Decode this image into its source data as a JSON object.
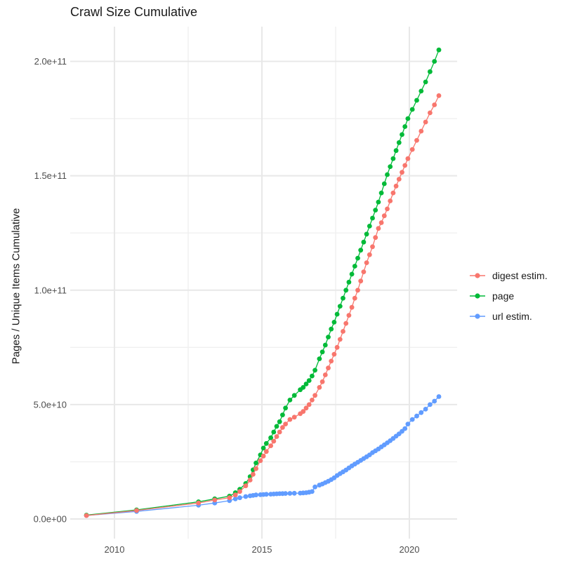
{
  "chart_data": {
    "type": "line",
    "title": "Crawl Size Cumulative",
    "xlabel": "",
    "ylabel": "Pages / Unique Items Cumulative",
    "x_unit": "year (decimal)",
    "values_unit": "1e9 (billions) of pages / unique items",
    "xlim": [
      2008.45,
      2021.6
    ],
    "ylim_e9": [
      0,
      215
    ],
    "grid": true,
    "legend_position": "right",
    "x_ticks": {
      "major": [
        2010,
        2015,
        2020
      ],
      "minor": [
        2012.5,
        2017.5
      ],
      "labels": [
        "2010",
        "2015",
        "2020"
      ]
    },
    "y_ticks": {
      "major_e9": [
        0,
        50,
        100,
        150,
        200
      ],
      "minor_e9": [
        25,
        75,
        125,
        175
      ],
      "labels": [
        "0.0e+00",
        "5.0e+10",
        "1.0e+11",
        "1.5e+11",
        "2.0e+11"
      ]
    },
    "legend": {
      "entries": [
        {
          "label": "digest estim.",
          "color": "#F8766D"
        },
        {
          "label": "page",
          "color": "#00BA38"
        },
        {
          "label": "url estim.",
          "color": "#619CFF"
        }
      ]
    },
    "x": [
      2009.05,
      2010.75,
      2012.85,
      2013.4,
      2013.9,
      2014.1,
      2014.25,
      2014.45,
      2014.6,
      2014.7,
      2014.8,
      2014.95,
      2015.05,
      2015.15,
      2015.3,
      2015.4,
      2015.5,
      2015.6,
      2015.7,
      2015.8,
      2015.95,
      2016.1,
      2016.3,
      2016.4,
      2016.5,
      2016.6,
      2016.7,
      2016.8,
      2016.95,
      2017.05,
      2017.15,
      2017.25,
      2017.35,
      2017.45,
      2017.55,
      2017.65,
      2017.75,
      2017.85,
      2017.95,
      2018.05,
      2018.15,
      2018.25,
      2018.35,
      2018.45,
      2018.55,
      2018.65,
      2018.75,
      2018.85,
      2018.95,
      2019.05,
      2019.15,
      2019.25,
      2019.35,
      2019.45,
      2019.55,
      2019.65,
      2019.75,
      2019.85,
      2019.95,
      2020.1,
      2020.25,
      2020.4,
      2020.55,
      2020.7,
      2020.85,
      2021.0
    ],
    "series": [
      {
        "name": "digest estim.",
        "color": "#F8766D",
        "values_e9": [
          1.5,
          3.7,
          7.0,
          8.3,
          9.3,
          10.5,
          12.0,
          14.5,
          17.0,
          19.5,
          22.0,
          25.5,
          27.5,
          29.5,
          32.0,
          34.0,
          36.0,
          38.0,
          40.0,
          41.5,
          43.5,
          44.5,
          46.0,
          47.0,
          48.5,
          50.0,
          52.0,
          54.0,
          57.5,
          60.0,
          63.0,
          66.0,
          69.0,
          72.0,
          75.0,
          78.5,
          82.0,
          85.5,
          89.0,
          92.5,
          96.5,
          100.0,
          104.0,
          108.0,
          112.0,
          115.5,
          119.0,
          123.0,
          127.0,
          129.5,
          132.5,
          135.5,
          139.0,
          142.5,
          145.5,
          148.5,
          151.5,
          154.5,
          157.5,
          161.5,
          165.5,
          169.5,
          173.5,
          177.5,
          181.0,
          185.0
        ]
      },
      {
        "name": "page",
        "color": "#00BA38",
        "values_e9": [
          1.7,
          4.0,
          7.5,
          8.8,
          10.0,
          11.5,
          13.0,
          15.5,
          18.5,
          21.5,
          24.5,
          28.0,
          31.0,
          33.0,
          35.5,
          38.0,
          40.5,
          42.5,
          45.5,
          48.5,
          52.0,
          54.0,
          56.5,
          57.5,
          59.0,
          60.5,
          62.5,
          65.0,
          70.0,
          73.0,
          76.0,
          79.5,
          83.0,
          86.0,
          89.5,
          93.0,
          96.5,
          100.0,
          103.5,
          107.0,
          110.5,
          114.0,
          117.5,
          121.0,
          124.5,
          128.0,
          131.5,
          135.0,
          138.5,
          142.5,
          146.5,
          150.5,
          154.0,
          157.5,
          161.0,
          164.5,
          168.0,
          171.5,
          175.0,
          179.0,
          183.0,
          187.0,
          191.0,
          195.5,
          200.0,
          205.0
        ]
      },
      {
        "name": "url estim.",
        "color": "#619CFF",
        "values_e9": [
          1.5,
          3.3,
          6.0,
          7.0,
          8.0,
          8.8,
          9.3,
          9.8,
          10.1,
          10.3,
          10.5,
          10.6,
          10.7,
          10.8,
          10.85,
          10.9,
          11.0,
          11.05,
          11.1,
          11.15,
          11.2,
          11.25,
          11.3,
          11.4,
          11.5,
          11.7,
          12.0,
          14.0,
          14.8,
          15.3,
          15.9,
          16.5,
          17.2,
          18.0,
          19.0,
          19.8,
          20.6,
          21.4,
          22.3,
          23.2,
          24.0,
          24.8,
          25.6,
          26.4,
          27.2,
          28.0,
          29.0,
          29.8,
          30.6,
          31.5,
          32.4,
          33.3,
          34.2,
          35.2,
          36.2,
          37.2,
          38.3,
          39.5,
          41.5,
          43.5,
          45.0,
          46.5,
          48.0,
          50.0,
          51.5,
          53.5
        ]
      }
    ],
    "style": {
      "background": "#ffffff",
      "grid_major_color": "#e8e8e8",
      "grid_minor_color": "#f0f0f0",
      "tick_label_color": "#4d4d4d",
      "title_color": "#1a1a1a"
    }
  }
}
